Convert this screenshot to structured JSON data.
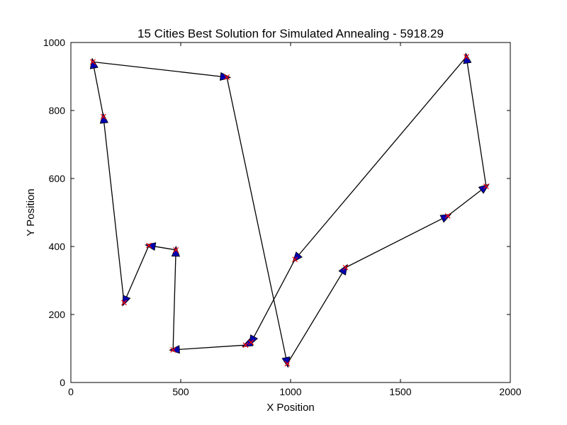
{
  "chart_data": {
    "type": "line",
    "title": "15 Cities Best Solution for Simulated Annealing - 5918.29",
    "xlabel": "X Position",
    "ylabel": "Y Position",
    "xlim": [
      0,
      2000
    ],
    "ylim": [
      0,
      1000
    ],
    "xticks": [
      0,
      500,
      1000,
      1500,
      2000
    ],
    "yticks": [
      0,
      200,
      400,
      600,
      800,
      1000
    ],
    "xtick_labels": [
      "0",
      "500",
      "1000",
      "1500",
      "2000"
    ],
    "ytick_labels": [
      "0",
      "200",
      "400",
      "600",
      "800",
      "1000"
    ],
    "grid": false,
    "route": [
      {
        "x": 100,
        "y": 943
      },
      {
        "x": 710,
        "y": 898
      },
      {
        "x": 985,
        "y": 55
      },
      {
        "x": 1250,
        "y": 338
      },
      {
        "x": 1715,
        "y": 490
      },
      {
        "x": 1890,
        "y": 577
      },
      {
        "x": 1800,
        "y": 958
      },
      {
        "x": 1020,
        "y": 362
      },
      {
        "x": 820,
        "y": 118
      },
      {
        "x": 795,
        "y": 110
      },
      {
        "x": 465,
        "y": 96
      },
      {
        "x": 478,
        "y": 390
      },
      {
        "x": 355,
        "y": 403
      },
      {
        "x": 242,
        "y": 235
      },
      {
        "x": 148,
        "y": 782
      }
    ],
    "colors": {
      "path": "#000000",
      "arrow_fill": "#0000b3",
      "city_marker": "#ff0000"
    }
  }
}
